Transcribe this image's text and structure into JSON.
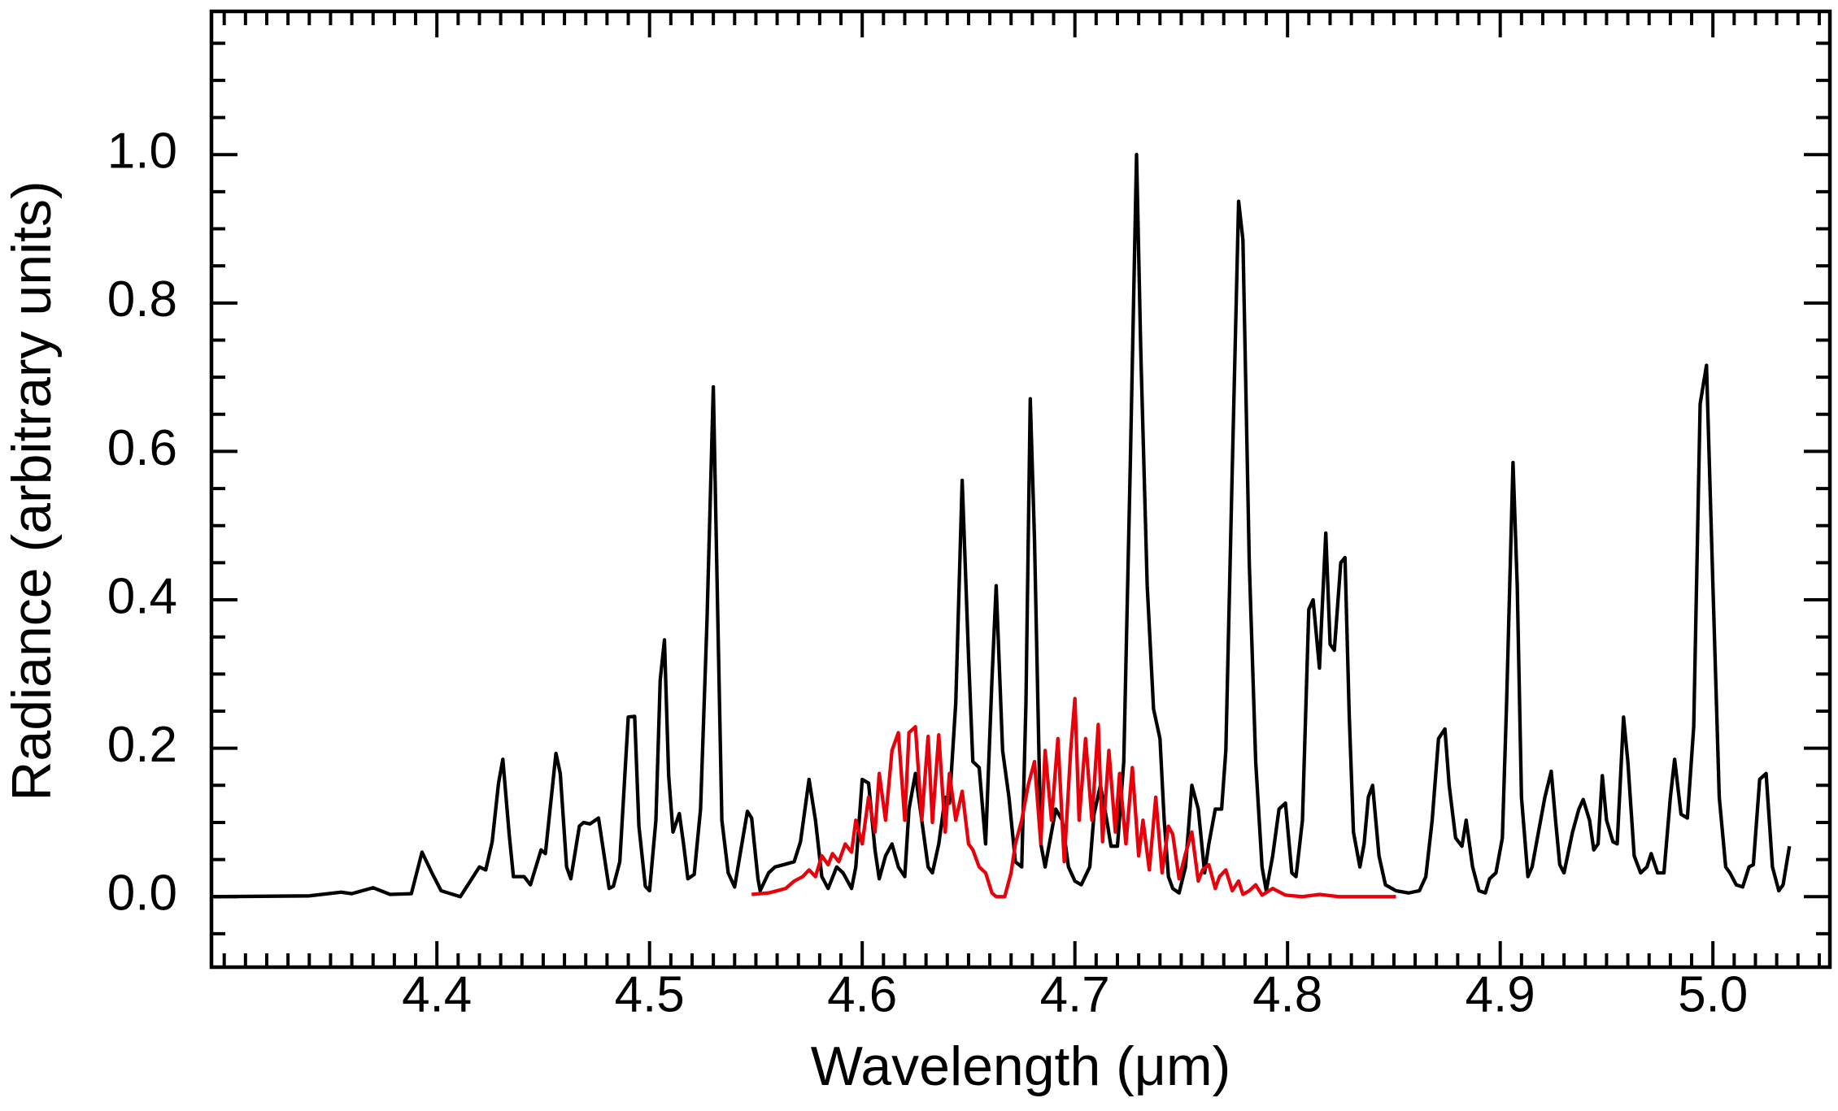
{
  "chart_data": {
    "type": "line",
    "xlabel": "Wavelength (μm)",
    "ylabel": "Radiance (arbitrary units)",
    "xlim": [
      4.294,
      5.055
    ],
    "ylim": [
      -0.095,
      1.193
    ],
    "xticks": [
      4.4,
      4.5,
      4.6,
      4.7,
      4.8,
      4.9,
      {
        "value": 5,
        "label": "5.0"
      }
    ],
    "yticks": [
      {
        "value": 0,
        "label": "0.0"
      },
      0.2,
      0.4,
      0.6,
      0.8,
      {
        "value": 1,
        "label": "1.0"
      }
    ],
    "xminorticks": [
      4.3,
      4.31,
      4.32,
      4.33,
      4.34,
      4.35,
      4.36,
      4.37,
      4.38,
      4.39,
      4.41,
      4.42,
      4.43,
      4.44,
      4.45,
      4.46,
      4.47,
      4.48,
      4.49,
      4.51,
      4.52,
      4.53,
      4.54,
      4.55,
      4.56,
      4.57,
      4.58,
      4.59,
      4.61,
      4.62,
      4.63,
      4.64,
      4.65,
      4.66,
      4.67,
      4.68,
      4.69,
      4.71,
      4.72,
      4.73,
      4.74,
      4.75,
      4.76,
      4.77,
      4.78,
      4.79,
      4.81,
      4.82,
      4.83,
      4.84,
      4.85,
      4.86,
      4.87,
      4.88,
      4.89,
      4.91,
      4.92,
      4.93,
      4.94,
      4.95,
      4.96,
      4.97,
      4.98,
      4.99,
      5.01,
      5.02,
      5.03,
      5.04,
      5.05
    ],
    "yminorticks": [
      -0.05,
      0.05,
      0.1,
      0.15,
      0.25,
      0.3,
      0.35,
      0.45,
      0.5,
      0.55,
      0.65,
      0.7,
      0.75,
      0.85,
      0.9,
      0.95,
      1.05,
      1.1,
      1.15
    ],
    "series": [
      {
        "color": "#000000",
        "x": [
          4.295,
          4.34,
          4.355,
          4.36,
          4.37,
          4.378,
          4.388,
          4.393,
          4.398,
          4.402,
          4.411,
          4.42,
          4.423,
          4.426,
          4.429,
          4.431,
          4.434,
          4.436,
          4.441,
          4.444,
          4.449,
          4.451,
          4.456,
          4.458,
          4.461,
          4.463,
          4.467,
          4.469,
          4.472,
          4.476,
          4.481,
          4.483,
          4.486,
          4.49,
          4.493,
          4.495,
          4.498,
          4.5,
          4.503,
          4.505,
          4.507,
          4.509,
          4.511,
          4.514,
          4.516,
          4.518,
          4.521,
          4.524,
          4.527,
          4.53,
          4.532,
          4.534,
          4.537,
          4.54,
          4.542,
          4.546,
          4.548,
          4.551,
          4.552,
          4.556,
          4.559,
          4.563,
          4.568,
          4.571,
          4.575,
          4.578,
          4.581,
          4.584,
          4.588,
          4.591,
          4.595,
          4.597,
          4.6,
          4.603,
          4.606,
          4.608,
          4.611,
          4.614,
          4.617,
          4.62,
          4.622,
          4.625,
          4.628,
          4.631,
          4.633,
          4.636,
          4.639,
          4.641,
          4.644,
          4.647,
          4.65,
          4.652,
          4.655,
          4.658,
          4.661,
          4.663,
          4.666,
          4.669,
          4.672,
          4.675,
          4.677,
          4.679,
          4.681,
          4.684,
          4.686,
          4.688,
          4.691,
          4.694,
          4.697,
          4.7,
          4.703,
          4.707,
          4.709,
          4.712,
          4.715,
          4.717,
          4.72,
          4.723,
          4.726,
          4.729,
          4.731,
          4.734,
          4.737,
          4.74,
          4.742,
          4.744,
          4.746,
          4.749,
          4.752,
          4.755,
          4.758,
          4.761,
          4.763,
          4.766,
          4.769,
          4.771,
          4.774,
          4.777,
          4.779,
          4.782,
          4.785,
          4.788,
          4.79,
          4.793,
          4.796,
          4.799,
          4.802,
          4.804,
          4.807,
          4.81,
          4.812,
          4.815,
          4.816,
          4.818,
          4.82,
          4.822,
          4.825,
          4.827,
          4.829,
          4.831,
          4.834,
          4.836,
          4.838,
          4.84,
          4.843,
          4.846,
          4.851,
          4.857,
          4.862,
          4.865,
          4.868,
          4.871,
          4.874,
          4.876,
          4.879,
          4.882,
          4.884,
          4.887,
          4.89,
          4.893,
          4.895,
          4.898,
          4.901,
          4.903,
          4.906,
          4.908,
          4.91,
          4.913,
          4.915,
          4.918,
          4.921,
          4.924,
          4.926,
          4.928,
          4.93,
          4.934,
          4.937,
          4.939,
          4.942,
          4.944,
          4.946,
          4.948,
          4.95,
          4.953,
          4.955,
          4.958,
          4.96,
          4.963,
          4.966,
          4.969,
          4.971,
          4.974,
          4.977,
          4.98,
          4.982,
          4.985,
          4.988,
          4.991,
          4.994,
          4.997,
          5.0,
          5.003,
          5.006,
          5.008,
          5.011,
          5.014,
          5.017,
          5.019,
          5.022,
          5.025,
          5.028,
          5.031,
          5.033,
          5.036
        ],
        "values": [
          0,
          0.001,
          0.006,
          0.004,
          0.012,
          0.003,
          0.004,
          0.06,
          0.03,
          0.008,
          0.0,
          0.04,
          0.036,
          0.074,
          0.153,
          0.185,
          0.084,
          0.027,
          0.027,
          0.016,
          0.063,
          0.058,
          0.193,
          0.166,
          0.04,
          0.024,
          0.095,
          0.1,
          0.098,
          0.106,
          0.011,
          0.014,
          0.047,
          0.242,
          0.243,
          0.095,
          0.014,
          0.008,
          0.103,
          0.292,
          0.346,
          0.163,
          0.087,
          0.112,
          0.071,
          0.024,
          0.03,
          0.118,
          0.371,
          0.687,
          0.387,
          0.103,
          0.032,
          0.013,
          0.047,
          0.115,
          0.106,
          0.024,
          0.008,
          0.032,
          0.04,
          0.043,
          0.047,
          0.074,
          0.158,
          0.103,
          0.027,
          0.011,
          0.04,
          0.032,
          0.011,
          0.04,
          0.158,
          0.153,
          0.063,
          0.024,
          0.055,
          0.071,
          0.04,
          0.027,
          0.118,
          0.166,
          0.103,
          0.04,
          0.032,
          0.071,
          0.134,
          0.126,
          0.261,
          0.561,
          0.324,
          0.182,
          0.174,
          0.071,
          0.292,
          0.419,
          0.197,
          0.134,
          0.047,
          0.04,
          0.261,
          0.671,
          0.482,
          0.071,
          0.04,
          0.071,
          0.118,
          0.103,
          0.04,
          0.021,
          0.016,
          0.04,
          0.111,
          0.15,
          0.103,
          0.068,
          0.068,
          0.182,
          0.577,
          1.0,
          0.735,
          0.419,
          0.253,
          0.213,
          0.103,
          0.027,
          0.011,
          0.005,
          0.04,
          0.15,
          0.118,
          0.032,
          0.071,
          0.118,
          0.118,
          0.197,
          0.577,
          0.937,
          0.885,
          0.45,
          0.182,
          0.04,
          0.008,
          0.055,
          0.118,
          0.126,
          0.032,
          0.027,
          0.103,
          0.387,
          0.4,
          0.308,
          0.371,
          0.49,
          0.34,
          0.332,
          0.45,
          0.457,
          0.245,
          0.087,
          0.04,
          0.071,
          0.134,
          0.15,
          0.055,
          0.016,
          0.008,
          0.005,
          0.008,
          0.027,
          0.103,
          0.213,
          0.226,
          0.15,
          0.079,
          0.068,
          0.103,
          0.04,
          0.008,
          0.005,
          0.024,
          0.032,
          0.079,
          0.261,
          0.585,
          0.419,
          0.134,
          0.027,
          0.04,
          0.087,
          0.134,
          0.169,
          0.103,
          0.043,
          0.032,
          0.087,
          0.118,
          0.131,
          0.103,
          0.063,
          0.071,
          0.163,
          0.103,
          0.074,
          0.071,
          0.242,
          0.182,
          0.055,
          0.032,
          0.04,
          0.058,
          0.032,
          0.032,
          0.134,
          0.185,
          0.111,
          0.106,
          0.229,
          0.664,
          0.716,
          0.419,
          0.134,
          0.04,
          0.032,
          0.016,
          0.013,
          0.04,
          0.043,
          0.158,
          0.166,
          0.04,
          0.008,
          0.016,
          0.068
        ]
      },
      {
        "color": "#e8000b",
        "x": [
          4.548,
          4.556,
          4.56,
          4.564,
          4.568,
          4.572,
          4.575,
          4.578,
          4.581,
          4.584,
          4.586,
          4.589,
          4.592,
          4.595,
          4.597,
          4.6,
          4.603,
          4.606,
          4.608,
          4.611,
          4.614,
          4.617,
          4.62,
          4.622,
          4.625,
          4.628,
          4.631,
          4.633,
          4.636,
          4.639,
          4.641,
          4.644,
          4.647,
          4.65,
          4.652,
          4.655,
          4.658,
          4.661,
          4.663,
          4.667,
          4.67,
          4.672,
          4.675,
          4.678,
          4.681,
          4.684,
          4.686,
          4.689,
          4.692,
          4.695,
          4.698,
          4.7,
          4.702,
          4.705,
          4.708,
          4.711,
          4.713,
          4.716,
          4.719,
          4.721,
          4.724,
          4.727,
          4.73,
          4.732,
          4.735,
          4.738,
          4.741,
          4.744,
          4.746,
          4.749,
          4.752,
          4.755,
          4.758,
          4.76,
          4.763,
          4.766,
          4.768,
          4.771,
          4.774,
          4.777,
          4.779,
          4.782,
          4.785,
          4.788,
          4.793,
          4.799,
          4.807,
          4.815,
          4.824,
          4.851
        ],
        "values": [
          0.003,
          0.005,
          0.008,
          0.011,
          0.021,
          0.027,
          0.036,
          0.027,
          0.055,
          0.043,
          0.058,
          0.047,
          0.071,
          0.06,
          0.103,
          0.071,
          0.134,
          0.087,
          0.166,
          0.103,
          0.197,
          0.221,
          0.103,
          0.221,
          0.229,
          0.103,
          0.216,
          0.1,
          0.218,
          0.087,
          0.166,
          0.103,
          0.142,
          0.071,
          0.063,
          0.04,
          0.032,
          0.005,
          0.0,
          0.0,
          0.032,
          0.071,
          0.103,
          0.15,
          0.182,
          0.071,
          0.197,
          0.103,
          0.213,
          0.047,
          0.197,
          0.267,
          0.103,
          0.213,
          0.103,
          0.232,
          0.074,
          0.197,
          0.087,
          0.166,
          0.071,
          0.174,
          0.055,
          0.103,
          0.036,
          0.134,
          0.032,
          0.095,
          0.084,
          0.024,
          0.058,
          0.087,
          0.021,
          0.036,
          0.043,
          0.011,
          0.027,
          0.036,
          0.008,
          0.021,
          0.003,
          0.008,
          0.016,
          0.002,
          0.011,
          0.002,
          0.0,
          0.003,
          0.0,
          0.0
        ]
      }
    ]
  }
}
